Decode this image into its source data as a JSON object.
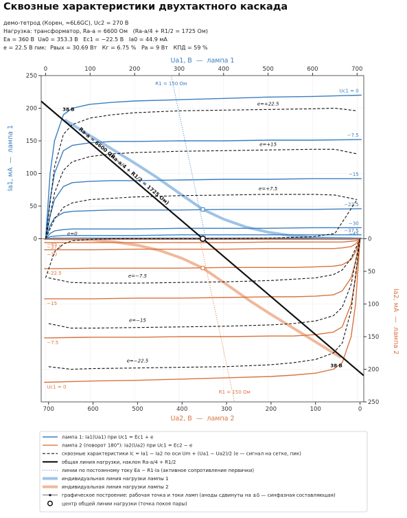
{
  "chart_data": {
    "type": "line",
    "title": "Сквозные характеристики двухтактного каскада",
    "subtitle": [
      "демо-тетрод (Корен, ≈6L6GC), Uc2 = 270 В",
      "Нагрузка: трансформатор, Ra-a = 6600 Ом   (Ra-a/4 + R1/2 = 1725 Ом)",
      "Ea = 360 В  Ua0 = 353.3 В   Ec1 = −22.5 В   Ia0 = 44.9 мА",
      "e = 22.5 В пик:  Pвых = 30.69 Вт   Кг = 6.75 %   Pa = 9 Вт   КПД = 59 %"
    ],
    "x_label": "Ua1, В  —  лампа 1",
    "y_label": "Ia1, мА  —  лампа 1",
    "x2_label": "Ua2, В  —  лампа 2",
    "y2_label": "Ia2, мА  —  лампа 2",
    "xlim": [
      -10,
      715
    ],
    "xticks": [
      0,
      100,
      200,
      300,
      400,
      500,
      600,
      700
    ],
    "x2lim": [
      716.6,
      -8.4
    ],
    "x2ticks": [
      0,
      100,
      200,
      300,
      400,
      500,
      600,
      700
    ],
    "ylim": [
      -250,
      250
    ],
    "yticks": [
      0,
      50,
      100,
      150,
      200,
      250
    ],
    "y2lim": [
      250,
      -250
    ],
    "y2ticks": [
      0,
      50,
      100,
      150,
      200,
      250
    ],
    "grid": true,
    "series": [
      {
        "label": "Uc1 = 0",
        "color": "#3a7ebf",
        "style": "solid",
        "width": 1.4,
        "x": [
          0,
          10,
          20,
          40,
          60,
          100,
          150,
          200,
          300,
          400,
          500,
          600,
          710
        ],
        "values": [
          0,
          100,
          150,
          190,
          200,
          206,
          209,
          211,
          213,
          215,
          217,
          218,
          220
        ]
      },
      {
        "label": "−7.5",
        "color": "#3a7ebf",
        "style": "solid",
        "width": 1.4,
        "x": [
          0,
          10,
          20,
          40,
          60,
          100,
          150,
          200,
          300,
          400,
          500,
          600,
          710
        ],
        "values": [
          0,
          60,
          100,
          135,
          143,
          147,
          149,
          149,
          150,
          150,
          151,
          151,
          152
        ]
      },
      {
        "label": "−15",
        "color": "#3a7ebf",
        "style": "solid",
        "width": 1.4,
        "x": [
          0,
          10,
          20,
          40,
          60,
          100,
          150,
          200,
          300,
          400,
          500,
          600,
          710
        ],
        "values": [
          0,
          35,
          60,
          80,
          86,
          88,
          89,
          89,
          90,
          91,
          91,
          92,
          92
        ]
      },
      {
        "label": "−22.5",
        "color": "#3a7ebf",
        "style": "solid",
        "width": 1.4,
        "x": [
          0,
          10,
          20,
          40,
          60,
          100,
          150,
          200,
          300,
          400,
          500,
          600,
          710
        ],
        "values": [
          0,
          20,
          32,
          40,
          42,
          43,
          44,
          44,
          44,
          45,
          45,
          45,
          46
        ]
      },
      {
        "label": "−30",
        "color": "#3a7ebf",
        "style": "solid",
        "width": 1.4,
        "x": [
          0,
          10,
          20,
          40,
          60,
          100,
          150,
          200,
          300,
          400,
          500,
          600,
          710
        ],
        "values": [
          0,
          8,
          12,
          14,
          15,
          15,
          15,
          15,
          16,
          16,
          16,
          17,
          17
        ]
      },
      {
        "label": "−37.5",
        "color": "#3a7ebf",
        "style": "solid",
        "width": 1.4,
        "x": [
          0,
          10,
          20,
          40,
          60,
          100,
          150,
          200,
          300,
          400,
          500,
          600,
          710
        ],
        "values": [
          0,
          3,
          4,
          5,
          5,
          5,
          5,
          5,
          6,
          6,
          6,
          6,
          6
        ]
      },
      {
        "label": "−45",
        "color": "#3a7ebf",
        "style": "solid",
        "width": 1.4,
        "x": [
          0,
          10,
          20,
          40,
          60,
          100,
          150,
          200,
          300,
          400,
          500,
          600,
          710
        ],
        "values": [
          0,
          0.5,
          0.7,
          0.8,
          0.9,
          1,
          1,
          1,
          1,
          1,
          1,
          1,
          1
        ]
      },
      {
        "label": "Uc1 = 0",
        "color": "#d9733f",
        "style": "solid",
        "width": 1.4,
        "axis": "y2",
        "x": [
          0,
          10,
          20,
          40,
          60,
          100,
          150,
          200,
          300,
          400,
          500,
          600,
          710
        ],
        "values": [
          0,
          100,
          150,
          190,
          200,
          206,
          209,
          211,
          213,
          215,
          217,
          218,
          220
        ]
      },
      {
        "label": "−7.5",
        "color": "#d9733f",
        "style": "solid",
        "width": 1.4,
        "axis": "y2",
        "x": [
          0,
          10,
          20,
          40,
          60,
          100,
          150,
          200,
          300,
          400,
          500,
          600,
          710
        ],
        "values": [
          0,
          60,
          100,
          135,
          143,
          147,
          149,
          149,
          150,
          150,
          151,
          151,
          152
        ]
      },
      {
        "label": "−15",
        "color": "#d9733f",
        "style": "solid",
        "width": 1.4,
        "axis": "y2",
        "x": [
          0,
          10,
          20,
          40,
          60,
          100,
          150,
          200,
          300,
          400,
          500,
          600,
          710
        ],
        "values": [
          0,
          35,
          60,
          80,
          86,
          88,
          89,
          89,
          90,
          91,
          91,
          92,
          92
        ]
      },
      {
        "label": "−22.5",
        "color": "#d9733f",
        "style": "solid",
        "width": 1.4,
        "axis": "y2",
        "x": [
          0,
          10,
          20,
          40,
          60,
          100,
          150,
          200,
          300,
          400,
          500,
          600,
          710
        ],
        "values": [
          0,
          20,
          32,
          40,
          42,
          43,
          44,
          44,
          44,
          45,
          45,
          45,
          46
        ]
      },
      {
        "label": "−30",
        "color": "#d9733f",
        "style": "solid",
        "width": 1.4,
        "axis": "y2",
        "x": [
          0,
          10,
          20,
          40,
          60,
          100,
          150,
          200,
          300,
          400,
          500,
          600,
          710
        ],
        "values": [
          0,
          8,
          12,
          14,
          15,
          15,
          15,
          15,
          16,
          16,
          16,
          17,
          17
        ]
      },
      {
        "label": "−37.5",
        "color": "#d9733f",
        "style": "solid",
        "width": 1.4,
        "axis": "y2",
        "x": [
          0,
          10,
          20,
          40,
          60,
          100,
          150,
          200,
          300,
          400,
          500,
          600,
          710
        ],
        "values": [
          0,
          3,
          4,
          5,
          5,
          5,
          5,
          5,
          6,
          6,
          6,
          6,
          6
        ]
      },
      {
        "label": "−45",
        "color": "#d9733f",
        "style": "solid",
        "width": 1.4,
        "axis": "y2",
        "x": [
          0,
          10,
          20,
          40,
          60,
          100,
          150,
          200,
          300,
          400,
          500,
          600,
          710
        ],
        "values": [
          0,
          0.5,
          0.7,
          0.8,
          0.9,
          1,
          1,
          1,
          1,
          1,
          1,
          1,
          1
        ]
      },
      {
        "label": "e=+22.5",
        "color": "#111111",
        "style": "dashed",
        "width": 1.1,
        "x": [
          0,
          20,
          40,
          60,
          100,
          150,
          200,
          300,
          400,
          500,
          600,
          650,
          700
        ],
        "values": [
          0,
          110,
          160,
          175,
          185,
          190,
          193,
          196,
          197,
          198,
          199,
          200,
          196
        ]
      },
      {
        "label": "e=+15",
        "color": "#111111",
        "style": "dashed",
        "width": 1.1,
        "x": [
          0,
          20,
          40,
          60,
          100,
          150,
          200,
          300,
          400,
          500,
          600,
          650,
          700
        ],
        "values": [
          0,
          70,
          105,
          118,
          126,
          130,
          132,
          134,
          135,
          136,
          137,
          137,
          130
        ]
      },
      {
        "label": "e=+7.5",
        "color": "#111111",
        "style": "dashed",
        "width": 1.1,
        "x": [
          0,
          20,
          40,
          60,
          100,
          150,
          200,
          300,
          400,
          500,
          600,
          650,
          700
        ],
        "values": [
          0,
          30,
          48,
          55,
          60,
          62,
          64,
          66,
          67,
          68,
          68,
          67,
          60
        ]
      },
      {
        "label": "e=0",
        "color": "#111111",
        "style": "dashed",
        "width": 1.1,
        "x": [
          0,
          20,
          40,
          60,
          100,
          150,
          200,
          300,
          400,
          500,
          600,
          650,
          700
        ],
        "values": [
          -60,
          -20,
          -8,
          -3,
          -1,
          0,
          0,
          0,
          0,
          1,
          3,
          8,
          60
        ]
      },
      {
        "label": "e=−7.5",
        "color": "#111111",
        "style": "dashed",
        "width": 1.1,
        "x": [
          6.6,
          56.6,
          106.6,
          206.6,
          306.6,
          406.6,
          506.6,
          556.6,
          606.6,
          646.6,
          666.6,
          686.6,
          706.6
        ],
        "values": [
          -60,
          -67,
          -68,
          -68,
          -67,
          -66,
          -64,
          -62,
          -60,
          -55,
          -48,
          -30,
          0
        ]
      },
      {
        "label": "e=−15",
        "color": "#111111",
        "style": "dashed",
        "width": 1.1,
        "x": [
          6.6,
          56.6,
          106.6,
          206.6,
          306.6,
          406.6,
          506.6,
          556.6,
          606.6,
          646.6,
          666.6,
          686.6,
          706.6
        ],
        "values": [
          -130,
          -137,
          -137,
          -136,
          -135,
          -134,
          -132,
          -130,
          -126,
          -118,
          -105,
          -70,
          0
        ]
      },
      {
        "label": "e=−22.5",
        "color": "#111111",
        "style": "dashed",
        "width": 1.1,
        "x": [
          6.6,
          56.6,
          106.6,
          206.6,
          306.6,
          406.6,
          506.6,
          556.6,
          606.6,
          646.6,
          666.6,
          686.6,
          706.6
        ],
        "values": [
          -196,
          -200,
          -199,
          -198,
          -197,
          -196,
          -193,
          -190,
          -185,
          -175,
          -160,
          -110,
          0
        ]
      },
      {
        "labels": [
          "Ra-a = 6600 Ом",
          "(Ra-a/4 + R1/2 = 1725 Ом)"
        ],
        "color": "#111111",
        "style": "solid",
        "width": 2.2,
        "x": [
          -10,
          715
        ],
        "values": [
          210.6,
          -209.7
        ]
      },
      {
        "color": "#9fc3e6",
        "style": "solid",
        "width": 4,
        "x": [
          43,
          100,
          150,
          200,
          250,
          300,
          353.3,
          400,
          450,
          500,
          550,
          600,
          650,
          690
        ],
        "values": [
          182,
          158,
          137,
          116,
          94,
          70,
          44.9,
          30,
          18,
          10,
          5,
          2,
          0.5,
          0
        ]
      },
      {
        "color": "#f0b89a",
        "style": "solid",
        "width": 4,
        "axis": "y2",
        "x": [
          43,
          100,
          150,
          200,
          250,
          300,
          353.3,
          400,
          450,
          500,
          550,
          600,
          650,
          690
        ],
        "values": [
          182,
          158,
          137,
          116,
          94,
          70,
          44.9,
          30,
          18,
          10,
          5,
          2,
          0.5,
          0
        ]
      },
      {
        "label": "R1 = 150 Ом",
        "color": "#3a7ebf",
        "style": "dotted",
        "width": 1,
        "x": [
          360,
          282
        ],
        "values": [
          0,
          250
        ]
      },
      {
        "label": "R1 = 150 Ом",
        "color": "#d9733f",
        "style": "dotted",
        "width": 1,
        "axis": "y2",
        "x": [
          360,
          282
        ],
        "values": [
          0,
          250
        ]
      }
    ],
    "points": [
      {
        "x": 353.3,
        "y": 44.9,
        "color": "#3a7ebf",
        "marker": "square"
      },
      {
        "x": 353.3,
        "y": 44.9,
        "color": "#d9733f",
        "marker": "square",
        "axis": "y2"
      },
      {
        "x": 353.3,
        "y": 0,
        "color": "#111111",
        "marker": "circle"
      }
    ],
    "annotations": [
      {
        "text": "38 В",
        "x": 38,
        "y": 196
      },
      {
        "text": "38 В",
        "x": 667,
        "y": -197
      }
    ],
    "legend": [
      {
        "label": "лампа 1: Ia1(Ua1) при Uc1 = Ec1 + e",
        "color": "#3a7ebf",
        "style": "solid",
        "width": 1.4
      },
      {
        "label": "лампа 2 (поворот 180°): Ia2(Ua2) при Uc1 = Ec2 − e",
        "color": "#d9733f",
        "style": "solid",
        "width": 1.4
      },
      {
        "label": "сквозные характеристики Ic = Ia1 − Ia2 по оси Um + (Ua1 − Ua2)/2 (e — сигнал на сетке, пик)",
        "color": "#111111",
        "style": "dashed",
        "width": 1.1
      },
      {
        "label": "общая линия нагрузки, наклон Ra-a/4 + R1/2",
        "color": "#111111",
        "style": "solid",
        "width": 2.2
      },
      {
        "label": "линии по постоянному току Ea − R1·Ia (активное сопротивление первички)",
        "color": "#3a7ebf",
        "style": "dotted",
        "width": 1
      },
      {
        "label": "индивидуальная линия нагрузки лампы 1",
        "color": "#9fc3e6",
        "style": "solid",
        "width": 4
      },
      {
        "label": "индивидуальная линия нагрузки лампы 2",
        "color": "#f0b89a",
        "style": "solid",
        "width": 4
      },
      {
        "label": "графическое построение: рабочая точка и токи ламп (аноды сдвинуты на ±δ — синфазная составляющая)",
        "color": "#111111",
        "style": "solid",
        "width": 0.6,
        "marker": "dot"
      },
      {
        "label": "центр общей линии нагрузки (точка покоя пары)",
        "color": "#111111",
        "style": "none",
        "width": 1.5,
        "marker": "circle"
      }
    ]
  }
}
